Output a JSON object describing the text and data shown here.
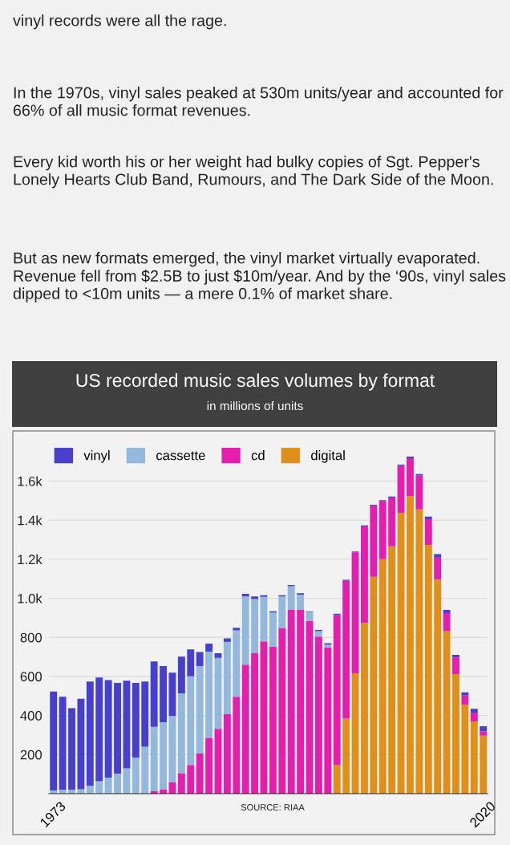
{
  "chart_data": {
    "type": "bar",
    "title": "US recorded music sales volumes by format",
    "subtitle": "in millions of units",
    "annotations": [
      "vinyl records were all the rage.",
      "In the 1970s, vinyl sales peaked at 530m units/year and accounted for 66% of all music format revenues.",
      "Every kid worth his or her weight had bulky copies of Sgt. Pepper's Lonely Hearts Club Band, Rumours, and The Dark Side of the Moon.",
      "But as new formats emerged, the vinyl market virtually evaporated. Revenue fell from $2.5B to just $10m/year. And by the ‘90s, vinyl sales dipped to <10m units — a mere 0.1% of market share.",
      "SOURCE: RIAA"
    ],
    "categories": [
      "1973",
      null,
      null,
      null,
      null,
      null,
      null,
      null,
      null,
      null,
      null,
      null,
      null,
      null,
      null,
      null,
      null,
      null,
      null,
      null,
      null,
      null,
      null,
      null,
      null,
      null,
      null,
      null,
      null,
      null,
      null,
      null,
      null,
      null,
      null,
      null,
      null,
      null,
      null,
      null,
      null,
      null,
      null,
      null,
      null,
      null,
      null,
      "2020"
    ],
    "stacked": true,
    "series": [
      {
        "name": "digital",
        "color": "#e0901a",
        "values": [
          0,
          0,
          0,
          0,
          0,
          0,
          0,
          0,
          0,
          0,
          0,
          0,
          0,
          0,
          0,
          0,
          0,
          0,
          0,
          0,
          0,
          0,
          0,
          0,
          0,
          0,
          0,
          0,
          0,
          0,
          0,
          147,
          384,
          616,
          875,
          1110,
          1201,
          1266,
          1438,
          1523,
          1455,
          1273,
          1096,
          832,
          612,
          455,
          370,
          297
        ]
      },
      {
        "name": "cd",
        "color": "#e41eae",
        "values": [
          0,
          0,
          0,
          0,
          0,
          0,
          0,
          0,
          0,
          0,
          0,
          12,
          23,
          58,
          105,
          147,
          205,
          286,
          332,
          407,
          496,
          660,
          719,
          779,
          753,
          848,
          941,
          941,
          884,
          804,
          749,
          767,
          706,
          619,
          493,
          364,
          297,
          250,
          240,
          194,
          175,
          132,
          113,
          92,
          85,
          47,
          45,
          21
        ]
      },
      {
        "name": "cassette",
        "color": "#93b8dc",
        "values": [
          16,
          19,
          21,
          23,
          40,
          64,
          82,
          103,
          129,
          185,
          240,
          330,
          343,
          339,
          409,
          454,
          448,
          441,
          363,
          370,
          340,
          350,
          277,
          228,
          174,
          162,
          121,
          78,
          46,
          28,
          14,
          0,
          0,
          0,
          0,
          0,
          0,
          0,
          0,
          0,
          0,
          0,
          0,
          0,
          0,
          0,
          0,
          0
        ]
      },
      {
        "name": "vinyl",
        "color": "#4640cc",
        "values": [
          507,
          477,
          417,
          463,
          534,
          531,
          499,
          464,
          449,
          382,
          334,
          335,
          287,
          222,
          187,
          137,
          72,
          41,
          24,
          18,
          13,
          13,
          14,
          9,
          7,
          6,
          6,
          7,
          4,
          6,
          7,
          7,
          5,
          5,
          5,
          5,
          5,
          5,
          6,
          8,
          6,
          13,
          17,
          17,
          14,
          17,
          19,
          27
        ]
      }
    ],
    "ylim": [
      0,
      1780
    ],
    "yticks": [
      200,
      400,
      600,
      800,
      {
        "value": 1000,
        "label": "1.0k"
      },
      {
        "value": 1200,
        "label": "1.2k"
      },
      {
        "value": 1400,
        "label": "1.4k"
      },
      {
        "value": 1600,
        "label": "1.6k"
      }
    ],
    "grid": "y",
    "legend": "top"
  }
}
